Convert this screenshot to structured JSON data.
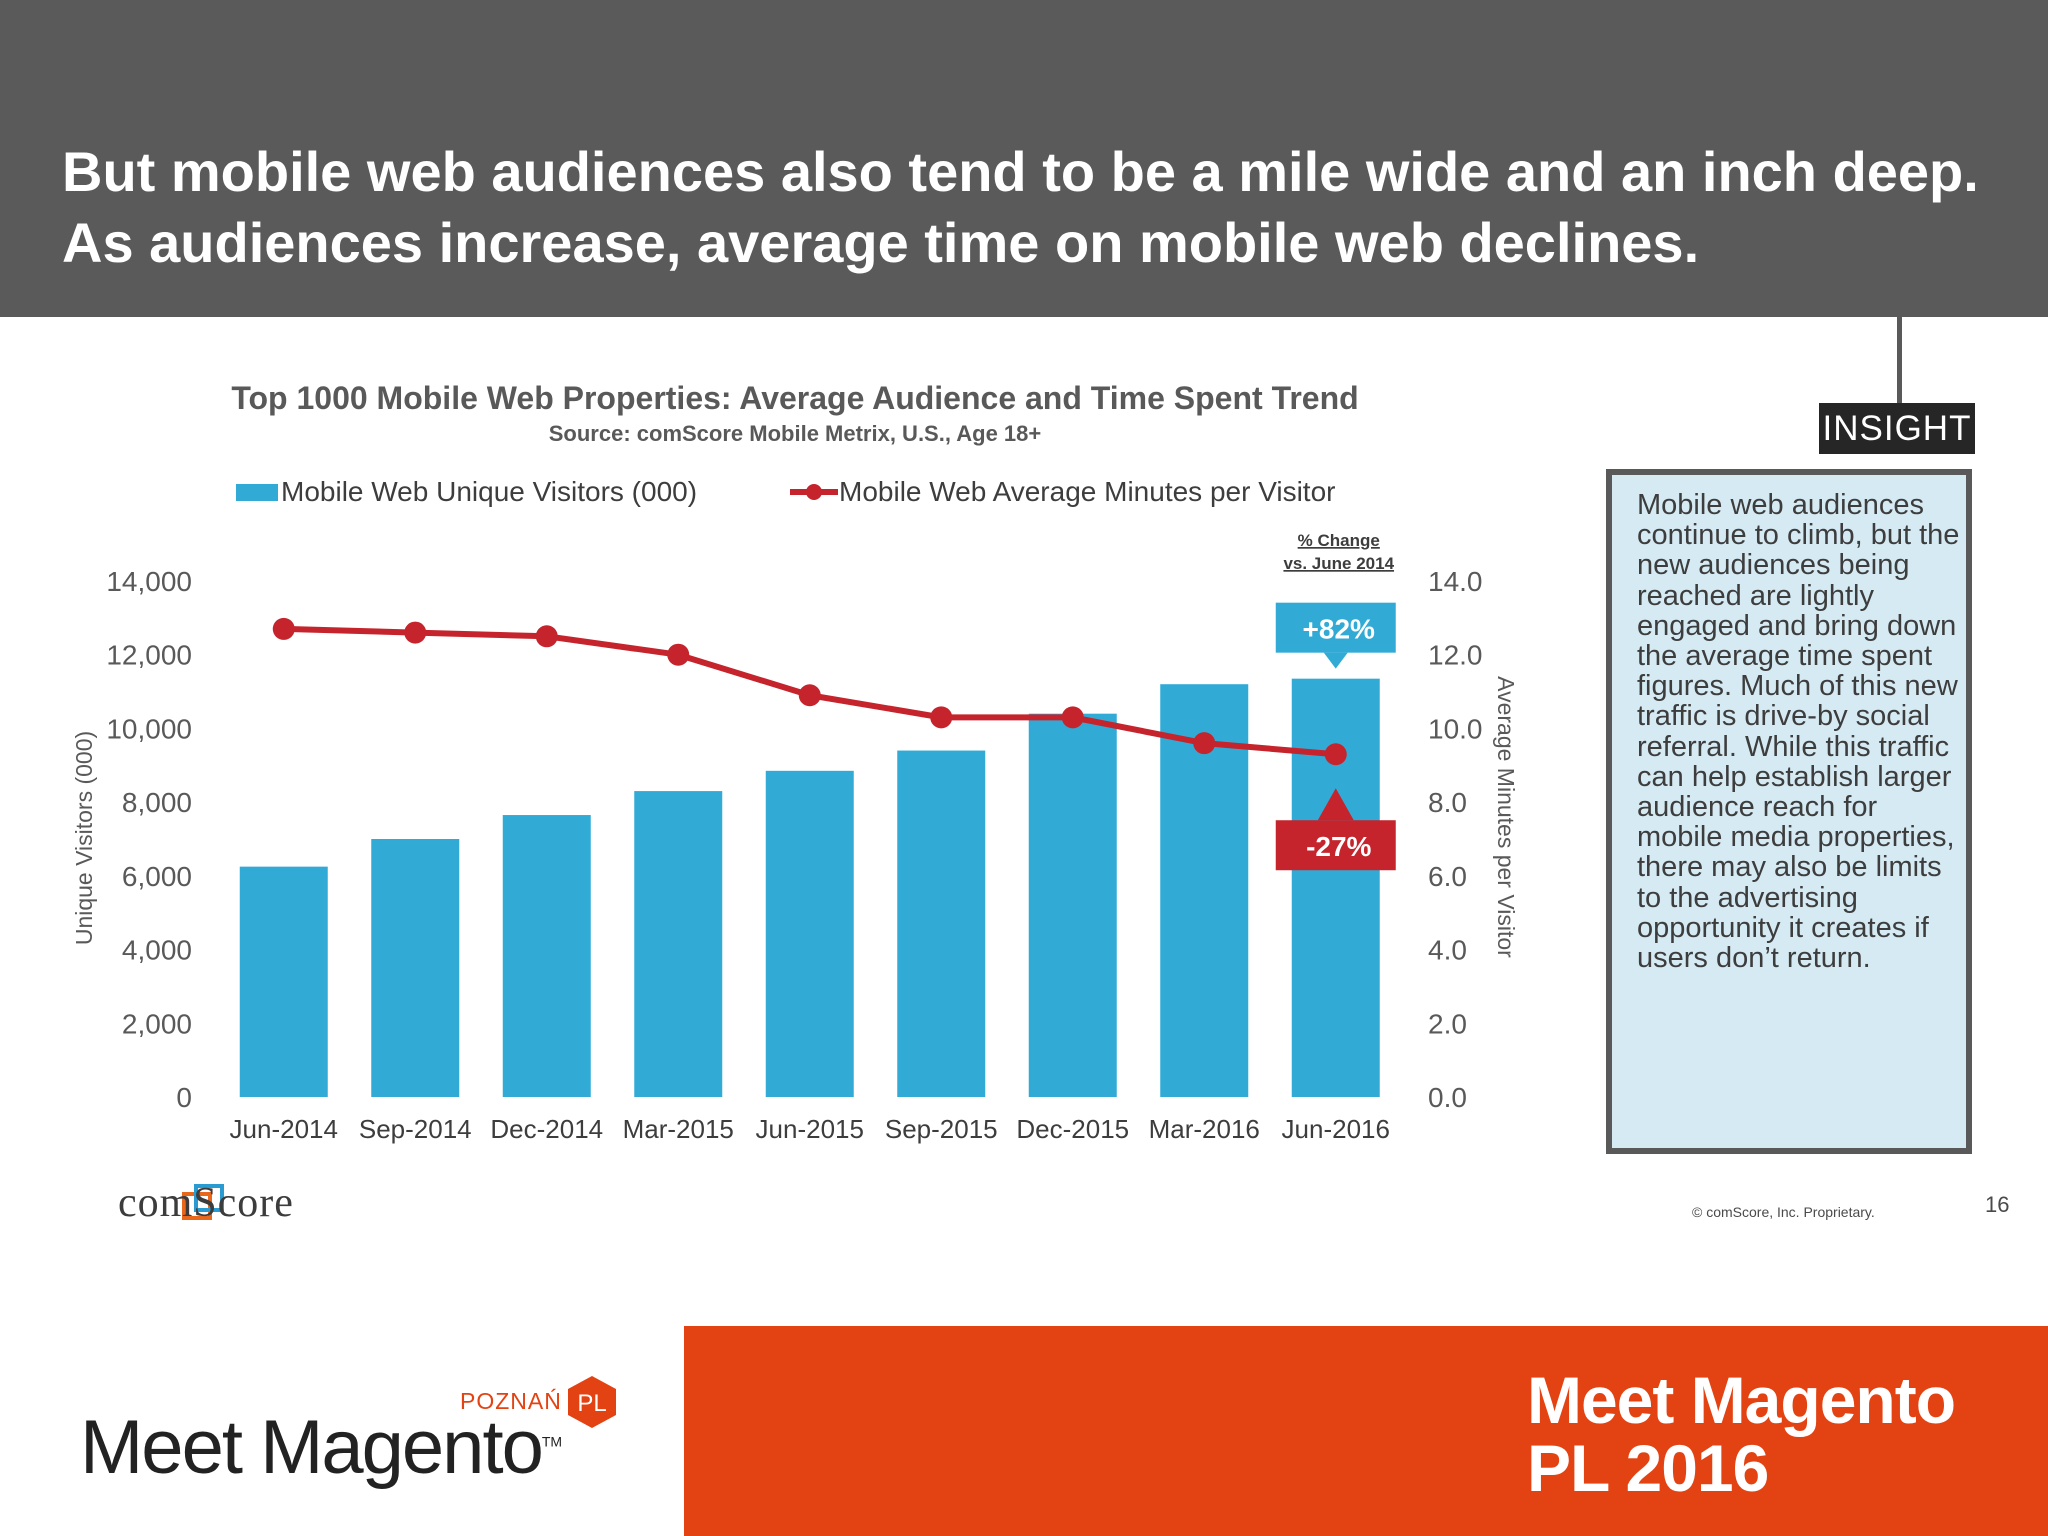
{
  "headline": "But mobile web audiences also tend to be a mile wide and an inch deep. As audiences increase, average time on mobile web declines.",
  "insight": {
    "tag": "INSIGHT",
    "text": "Mobile web audiences continue to climb, but the new audiences being reached are lightly engaged and bring down the average time spent figures. Much of this new traffic is drive-by social referral. While this traffic can help establish larger audience reach for mobile media properties, there may also be limits to the advertising opportunity it creates if users don’t return."
  },
  "colors": {
    "bar": "#31abd6",
    "line": "#c5242c",
    "header": "#5a5a5a",
    "footer": "#e34313"
  },
  "chart_data": {
    "type": "bar",
    "title": "Top 1000 Mobile Web Properties: Average Audience and Time Spent Trend",
    "subtitle": "Source: comScore Mobile Metrix, U.S., Age 18+",
    "categories": [
      "Jun-2014",
      "Sep-2014",
      "Dec-2014",
      "Mar-2015",
      "Jun-2015",
      "Sep-2015",
      "Dec-2015",
      "Mar-2016",
      "Jun-2016"
    ],
    "series": [
      {
        "name": "Mobile Web Unique Visitors (000)",
        "type": "bar",
        "axis": "left",
        "values": [
          6250,
          7000,
          7650,
          8300,
          8850,
          9400,
          10400,
          11200,
          11350
        ]
      },
      {
        "name": "Mobile Web Average Minutes per Visitor",
        "type": "line",
        "axis": "right",
        "values": [
          12.7,
          12.6,
          12.5,
          12.0,
          10.9,
          10.3,
          10.3,
          9.6,
          9.3
        ]
      }
    ],
    "ylabel": "Unique Visitors (000)",
    "ylim": [
      0,
      14000
    ],
    "yticks": [
      "0",
      "2,000",
      "4,000",
      "6,000",
      "8,000",
      "10,000",
      "12,000",
      "14,000"
    ],
    "y2label": "Average Minutes per Visitor",
    "y2lim": [
      0,
      14
    ],
    "y2ticks": [
      "0.0",
      "2.0",
      "4.0",
      "6.0",
      "8.0",
      "10.0",
      "12.0",
      "14.0"
    ],
    "change_header": [
      "% Change",
      "vs. June 2014"
    ],
    "callouts": [
      {
        "text": "+82%",
        "series": "Mobile Web Unique Visitors (000)",
        "category": "Jun-2016"
      },
      {
        "text": "-27%",
        "series": "Mobile Web Average Minutes per Visitor",
        "category": "Jun-2016"
      }
    ]
  },
  "footer": {
    "source_brand": "comScore",
    "copyright": "© comScore, Inc. Proprietary.",
    "page_number": "16",
    "event_city": "POZNAŃ",
    "event_badge": "PL",
    "event_logo": "Meet Magento",
    "event_tm": "TM",
    "event_title_line1": "Meet Magento",
    "event_title_line2": "PL 2016"
  }
}
